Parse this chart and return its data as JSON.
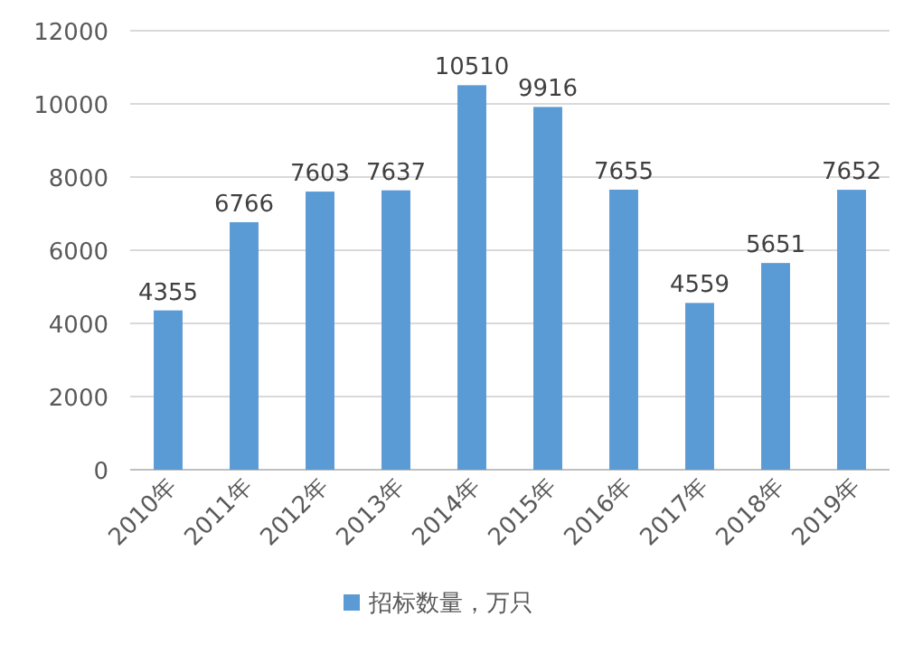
{
  "chart_data": {
    "type": "bar",
    "categories": [
      "2010年",
      "2011年",
      "2012年",
      "2013年",
      "2014年",
      "2015年",
      "2016年",
      "2017年",
      "2018年",
      "2019年"
    ],
    "series": [
      {
        "name": "招标数量，万只",
        "color": "#5b9bd5",
        "values": [
          4355,
          6766,
          7603,
          7637,
          10510,
          9916,
          7655,
          4559,
          5651,
          7652
        ]
      }
    ],
    "ylim": [
      0,
      12000
    ],
    "yticks": [
      0,
      2000,
      4000,
      6000,
      8000,
      10000,
      12000
    ],
    "grid": "y",
    "legend": "bottom",
    "data_labels": true
  }
}
